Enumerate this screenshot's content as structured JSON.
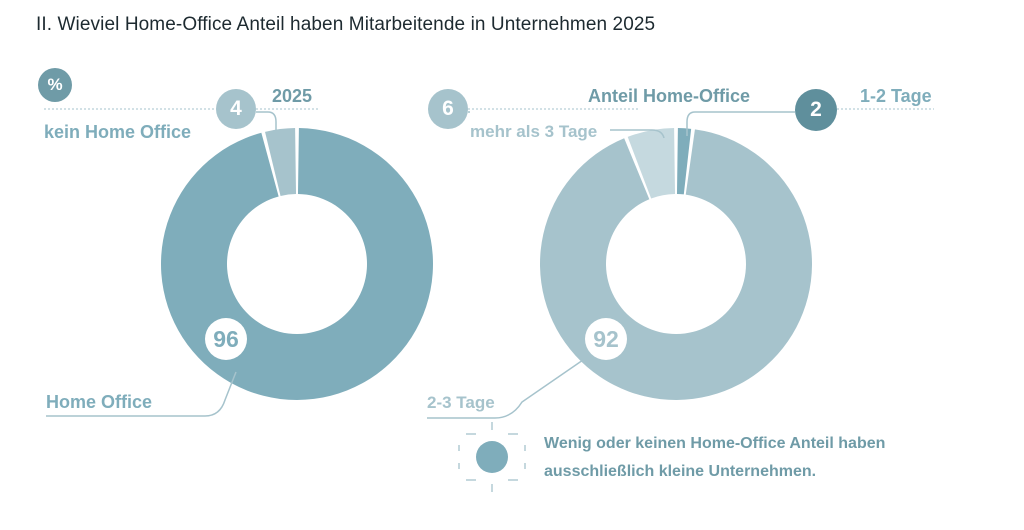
{
  "title": "II. Wieviel Home-Office Anteil haben Mitarbeitende in Unternehmen 2025",
  "unit_badge": "%",
  "colors": {
    "dark": "#7fadbb",
    "mid": "#a6c3cc",
    "light": "#c5d9df",
    "text": "#6f9ba7",
    "bubble_dark": "#5f8f9c"
  },
  "chart_data": [
    {
      "type": "pie",
      "title": "2025",
      "slices": [
        {
          "label": "Home Office",
          "value": 96,
          "value_label": "96"
        },
        {
          "label": "kein Home Office",
          "value": 4,
          "value_label": "4"
        }
      ]
    },
    {
      "type": "pie",
      "title": "Anteil Home-Office",
      "slices": [
        {
          "label": "1-2 Tage",
          "value": 2,
          "value_label": "2"
        },
        {
          "label": "2-3 Tage",
          "value": 92,
          "value_label": "92"
        },
        {
          "label": "mehr als 3 Tage",
          "value": 6,
          "value_label": "6"
        }
      ]
    }
  ],
  "note": {
    "line1": "Wenig oder keinen Home-Office Anteil haben",
    "line2": "ausschließlich kleine Unternehmen."
  }
}
